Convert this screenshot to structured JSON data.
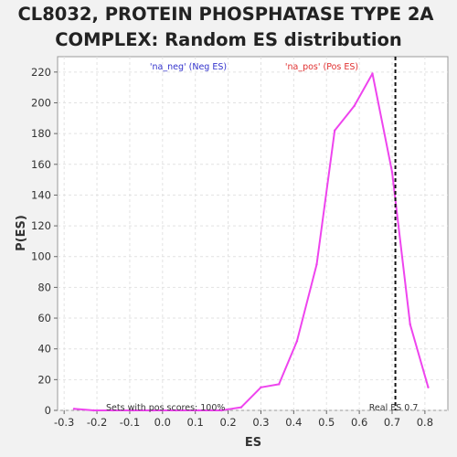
{
  "chart_data": {
    "type": "line",
    "title_lines": [
      "CL8032, PROTEIN PHOSPHATASE TYPE 2A",
      "COMPLEX: Random ES distribution"
    ],
    "xlabel": "ES",
    "ylabel": "P(ES)",
    "xlim": [
      -0.32,
      0.87
    ],
    "ylim": [
      0,
      230
    ],
    "x_ticks": [
      -0.3,
      -0.2,
      -0.1,
      0.0,
      0.1,
      0.2,
      0.3,
      0.4,
      0.5,
      0.6,
      0.7,
      0.8
    ],
    "y_ticks": [
      0,
      20,
      40,
      60,
      80,
      100,
      120,
      140,
      160,
      180,
      200,
      220
    ],
    "grid": true,
    "legend": [
      {
        "label": "'na_neg' (Neg ES)",
        "color": "#3333cc"
      },
      {
        "label": "'na_pos' (Pos ES)",
        "color": "#e03030"
      }
    ],
    "series": [
      {
        "color": "#ee44ee",
        "x": [
          -0.27,
          -0.21,
          -0.15,
          -0.09,
          -0.03,
          0.04,
          0.11,
          0.18,
          0.24,
          0.3,
          0.355,
          0.41,
          0.47,
          0.525,
          0.585,
          0.64,
          0.7,
          0.755,
          0.81
        ],
        "y": [
          1,
          0,
          0,
          0,
          0,
          0,
          0,
          0,
          2,
          15,
          17,
          45,
          95,
          182,
          198,
          219,
          155,
          56,
          15
        ]
      }
    ],
    "reference_line": {
      "x": 0.71,
      "label": "Real ES 0.7"
    },
    "annotation": "Sets with pos scores: 100%"
  }
}
